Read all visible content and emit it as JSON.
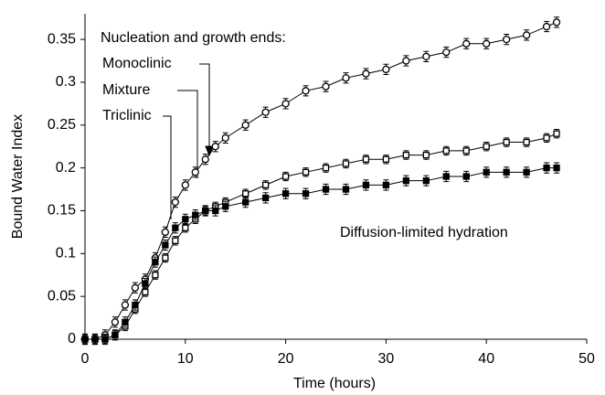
{
  "chart_data": {
    "type": "scatter",
    "xlabel": "Time (hours)",
    "ylabel": "Bound Water Index",
    "annotations": {
      "header": "Nucleation and growth ends:",
      "note": "Diffusion-limited hydration"
    },
    "x": [
      0,
      1,
      2,
      3,
      4,
      5,
      6,
      7,
      8,
      9,
      10,
      11,
      12,
      13,
      14,
      16,
      18,
      20,
      22,
      24,
      26,
      28,
      30,
      32,
      34,
      36,
      38,
      40,
      42,
      44,
      46,
      47
    ],
    "series": [
      {
        "name": "Monoclinic",
        "marker": "open-circle",
        "color": "#000000",
        "error": 0.006,
        "values": [
          0,
          0,
          0.005,
          0.02,
          0.04,
          0.06,
          0.07,
          0.095,
          0.125,
          0.16,
          0.18,
          0.195,
          0.21,
          0.225,
          0.235,
          0.25,
          0.265,
          0.275,
          0.29,
          0.295,
          0.305,
          0.31,
          0.315,
          0.325,
          0.33,
          0.335,
          0.345,
          0.345,
          0.35,
          0.355,
          0.365,
          0.37
        ]
      },
      {
        "name": "Mixture",
        "marker": "open-square",
        "color": "#000000",
        "error": 0.005,
        "values": [
          0,
          0,
          0,
          0.005,
          0.015,
          0.035,
          0.055,
          0.075,
          0.095,
          0.115,
          0.13,
          0.14,
          0.15,
          0.155,
          0.16,
          0.17,
          0.18,
          0.19,
          0.195,
          0.2,
          0.205,
          0.21,
          0.21,
          0.215,
          0.215,
          0.22,
          0.22,
          0.225,
          0.23,
          0.23,
          0.235,
          0.24
        ]
      },
      {
        "name": "Triclinic",
        "marker": "filled-square",
        "color": "#000000",
        "error": 0.006,
        "values": [
          0,
          0,
          0,
          0.005,
          0.02,
          0.04,
          0.065,
          0.09,
          0.11,
          0.13,
          0.14,
          0.145,
          0.15,
          0.15,
          0.155,
          0.16,
          0.165,
          0.17,
          0.17,
          0.175,
          0.175,
          0.18,
          0.18,
          0.185,
          0.185,
          0.19,
          0.19,
          0.195,
          0.195,
          0.195,
          0.2,
          0.2
        ]
      }
    ],
    "xlim": [
      0,
      50
    ],
    "xticks": [
      0,
      10,
      20,
      30,
      40,
      50
    ],
    "ylim": [
      0,
      0.38
    ],
    "yticks": [
      0,
      0.05,
      0.1,
      0.15,
      0.2,
      0.25,
      0.3,
      0.35
    ]
  }
}
